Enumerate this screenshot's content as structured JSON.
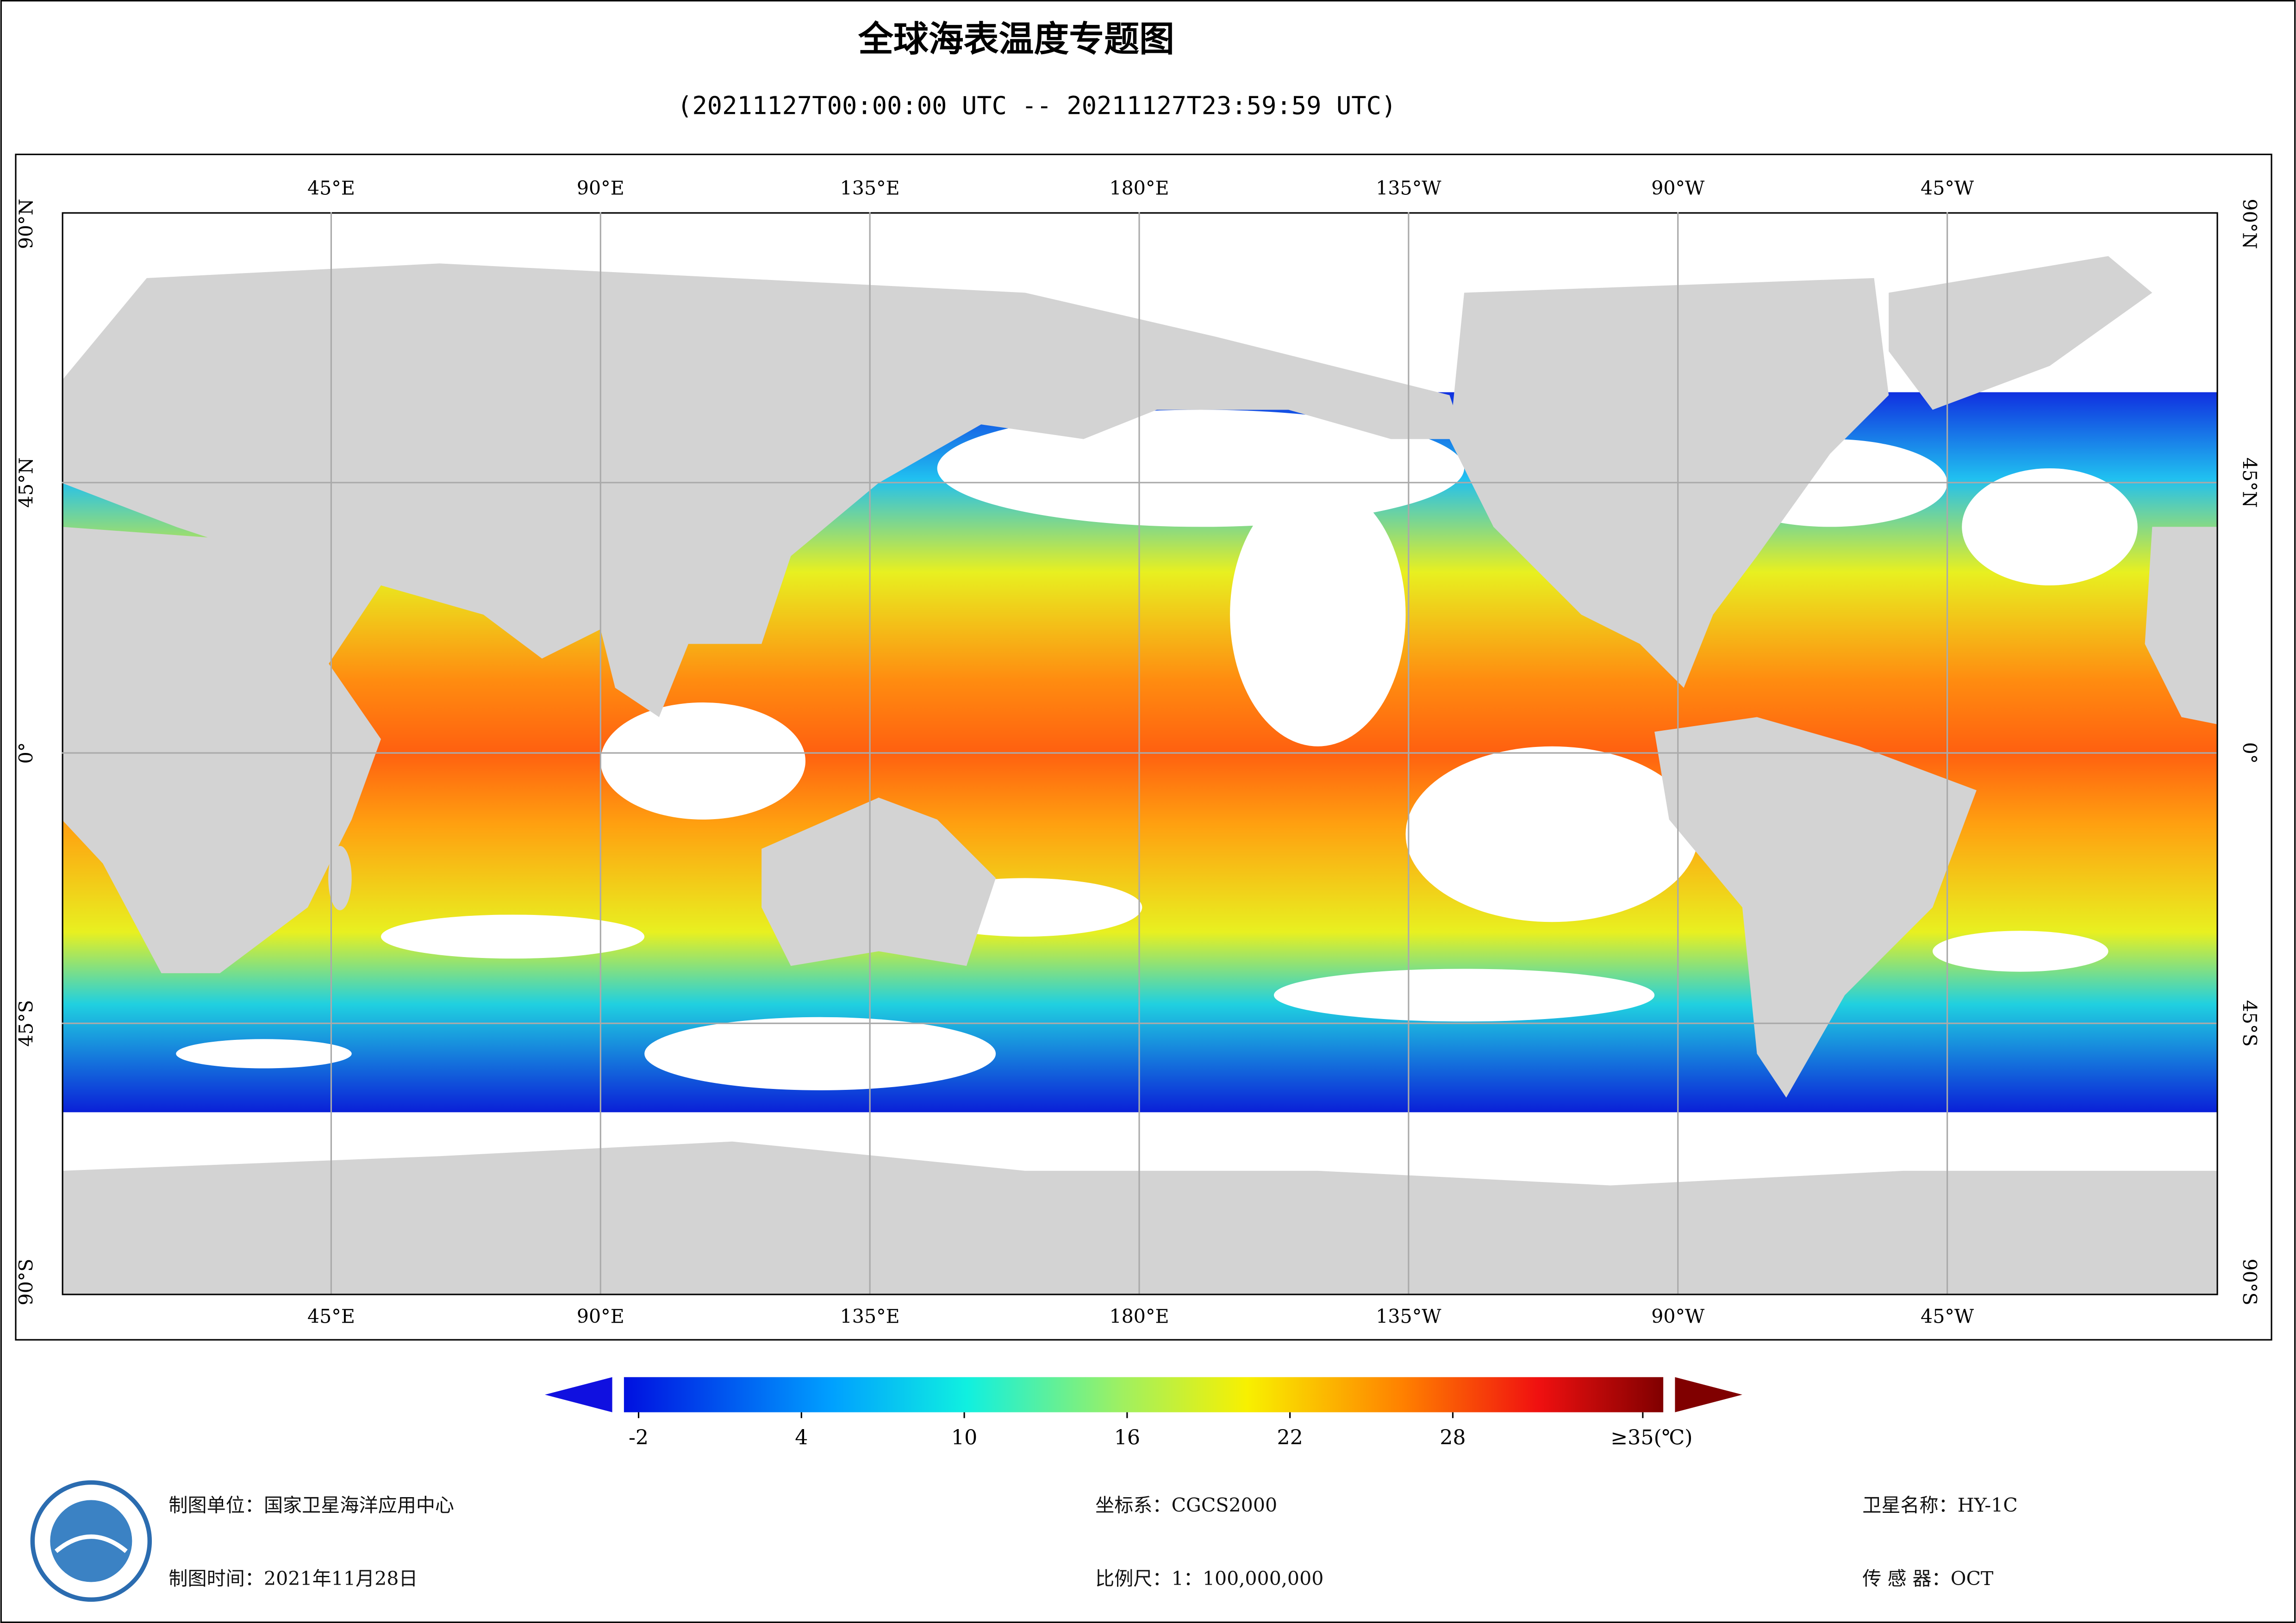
{
  "header": {
    "title": "全球海表温度专题图",
    "subtitle": "(20211127T00:00:00 UTC -- 20211127T23:59:59 UTC)"
  },
  "map": {
    "xlim": [
      0,
      360
    ],
    "ylim": [
      -90,
      90
    ],
    "lon_ticks": [
      {
        "value": 45,
        "label": "45°E"
      },
      {
        "value": 90,
        "label": "90°E"
      },
      {
        "value": 135,
        "label": "135°E"
      },
      {
        "value": 180,
        "label": "180°E"
      },
      {
        "value": 225,
        "label": "135°W"
      },
      {
        "value": 270,
        "label": "90°W"
      },
      {
        "value": 315,
        "label": "45°W"
      }
    ],
    "lat_ticks": [
      {
        "value": 90,
        "label": "90°N"
      },
      {
        "value": 45,
        "label": "45°N"
      },
      {
        "value": 0,
        "label": "0°"
      },
      {
        "value": -45,
        "label": "45°S"
      },
      {
        "value": -90,
        "label": "90°S"
      }
    ]
  },
  "colorbar": {
    "ticks": [
      -2,
      4,
      10,
      16,
      22,
      28,
      {
        "value": 35,
        "label": "≥35(℃)"
      }
    ]
  },
  "footer": {
    "unit": "制图单位：国家卫星海洋应用中心",
    "date": "制图时间：2021年11月28日",
    "crs": "坐标系：CGCS2000",
    "scale": "比例尺：1：100,000,000",
    "satellite": "卫星名称：HY-1C",
    "sensor": "传 感 器：OCT"
  }
}
